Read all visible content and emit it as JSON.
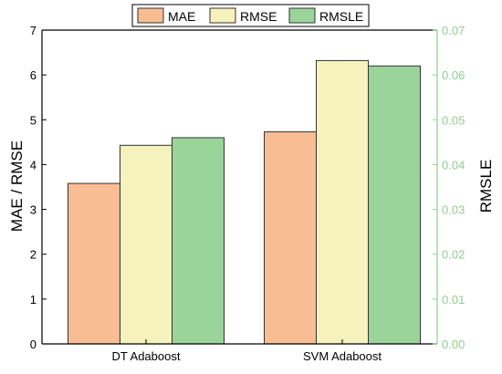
{
  "chart_data": {
    "type": "bar",
    "categories": [
      "DT Adaboost",
      "SVM Adaboost"
    ],
    "series": [
      {
        "name": "MAE",
        "axis": "left",
        "color": "#f8bd93",
        "values": [
          3.58,
          4.73
        ]
      },
      {
        "name": "RMSE",
        "axis": "left",
        "color": "#f5f2bd",
        "values": [
          4.43,
          6.32
        ]
      },
      {
        "name": "RMSLE",
        "axis": "right",
        "color": "#9bd49b",
        "values": [
          0.046,
          0.062
        ]
      }
    ],
    "ylabel": "MAE / RMSE",
    "ylabel_right": "RMSLE",
    "ylim": [
      0,
      7
    ],
    "ylim_right": [
      0,
      0.07
    ],
    "yticks": [
      "0",
      "1",
      "2",
      "3",
      "4",
      "5",
      "6",
      "7"
    ],
    "yticks_right": [
      "0.00",
      "0.01",
      "0.02",
      "0.03",
      "0.04",
      "0.05",
      "0.06",
      "0.07"
    ],
    "right_axis_color": "#8fce8f",
    "legend_position": "top",
    "grid": false
  }
}
